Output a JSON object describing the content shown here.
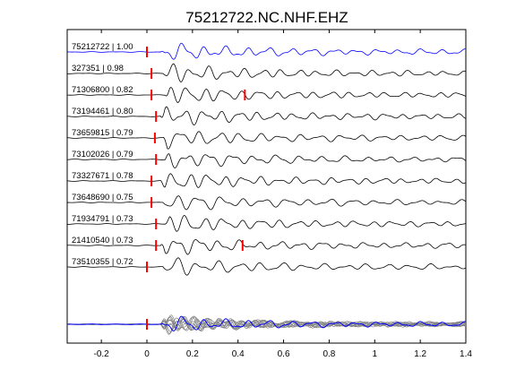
{
  "chart_data": {
    "type": "line",
    "title": "75212722.NC.NHF.EHZ",
    "xlabel": "",
    "ylabel": "",
    "xlim": [
      -0.35,
      1.4
    ],
    "x_ticks": [
      -0.2,
      0,
      0.2,
      0.4,
      0.6,
      0.8,
      1,
      1.2,
      1.4
    ],
    "x_tick_labels": [
      "-0.2",
      "0",
      "0.2",
      "0.4",
      "0.6",
      "0.8",
      "1",
      "1.2",
      "1.4"
    ],
    "grid": false,
    "colors": {
      "reference_trace": "#0000ff",
      "trace": "#000000",
      "pick_marker": "#ff0000",
      "stack_traces": "#808080",
      "axes": "#000000"
    },
    "traces": [
      {
        "label": "75212722 | 1.00",
        "event_id": "75212722",
        "correlation": 1.0,
        "pick_times": [
          0.0
        ],
        "highlight": true
      },
      {
        "label": "327351 | 0.98",
        "event_id": "327351",
        "correlation": 0.98,
        "pick_times": [
          0.02
        ],
        "highlight": false
      },
      {
        "label": "71306800 | 0.82",
        "event_id": "71306800",
        "correlation": 0.82,
        "pick_times": [
          0.02,
          0.43
        ],
        "highlight": false
      },
      {
        "label": "73194461 | 0.80",
        "event_id": "73194461",
        "correlation": 0.8,
        "pick_times": [
          0.04
        ],
        "highlight": false
      },
      {
        "label": "73659815 | 0.79",
        "event_id": "73659815",
        "correlation": 0.79,
        "pick_times": [
          0.035
        ],
        "highlight": false
      },
      {
        "label": "73102026 | 0.79",
        "event_id": "73102026",
        "correlation": 0.79,
        "pick_times": [
          0.04
        ],
        "highlight": false
      },
      {
        "label": "73327671 | 0.78",
        "event_id": "73327671",
        "correlation": 0.78,
        "pick_times": [
          0.02
        ],
        "highlight": false
      },
      {
        "label": "73648690 | 0.75",
        "event_id": "73648690",
        "correlation": 0.75,
        "pick_times": [
          0.02
        ],
        "highlight": false
      },
      {
        "label": "71934791 | 0.73",
        "event_id": "71934791",
        "correlation": 0.73,
        "pick_times": [
          0.04
        ],
        "highlight": false
      },
      {
        "label": "21410540 | 0.73",
        "event_id": "21410540",
        "correlation": 0.73,
        "pick_times": [
          0.04,
          0.42
        ],
        "highlight": false
      },
      {
        "label": "73510355 | 0.72",
        "event_id": "73510355",
        "correlation": 0.72,
        "pick_times": [
          0.0
        ],
        "highlight": false
      }
    ],
    "stack": {
      "pick_times": [
        0.0
      ],
      "overlay_count": 11
    }
  }
}
